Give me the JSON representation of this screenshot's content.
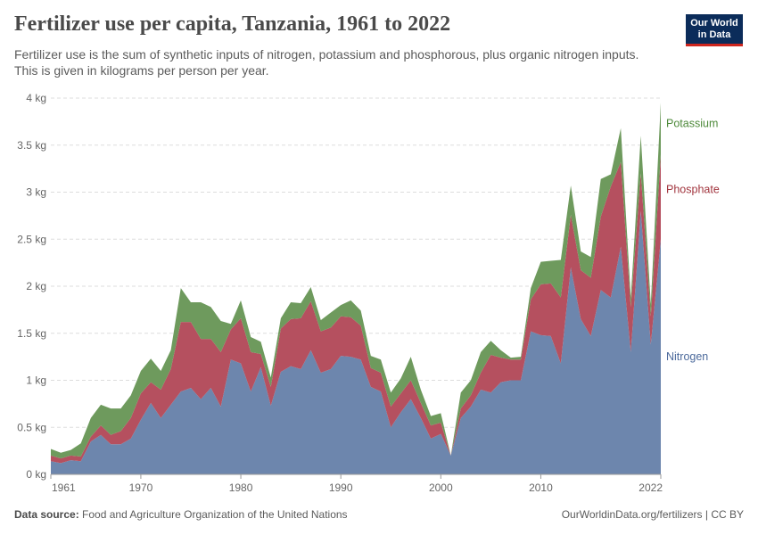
{
  "title": "Fertilizer use per capita, Tanzania, 1961 to 2022",
  "subtitle": "Fertilizer use is the sum of synthetic inputs of nitrogen, potassium and phosphorous, plus organic nitrogen inputs. This is given in kilograms per person per year.",
  "logo": {
    "line1": "Our World",
    "line2": "in Data"
  },
  "footer": {
    "source_label": "Data source:",
    "source_text": "Food and Agriculture Organization of the United Nations",
    "url": "OurWorldinData.org/fertilizers | CC BY"
  },
  "colors": {
    "nitrogen": "#6d86ad",
    "phosphate": "#b5505f",
    "potassium": "#6e9a5d",
    "nitrogen_label": "#4c6a9c",
    "phosphate_label": "#a2363f",
    "potassium_label": "#4e8a3b"
  },
  "chart_data": {
    "type": "area",
    "stacked": true,
    "title": "Fertilizer use per capita, Tanzania, 1961 to 2022",
    "xlabel": "",
    "ylabel": "kilograms per person",
    "xlim": [
      1961,
      2022
    ],
    "ylim": [
      0,
      4
    ],
    "x_ticks": [
      "1961",
      "1970",
      "1980",
      "1990",
      "2000",
      "2010",
      "2022"
    ],
    "y_ticks": [
      "0 kg",
      "0.5 kg",
      "1 kg",
      "1.5 kg",
      "2 kg",
      "2.5 kg",
      "3 kg",
      "3.5 kg",
      "4 kg"
    ],
    "grid": true,
    "x": [
      1961,
      1962,
      1963,
      1964,
      1965,
      1966,
      1967,
      1968,
      1969,
      1970,
      1971,
      1972,
      1973,
      1974,
      1975,
      1976,
      1977,
      1978,
      1979,
      1980,
      1981,
      1982,
      1983,
      1984,
      1985,
      1986,
      1987,
      1988,
      1989,
      1990,
      1991,
      1992,
      1993,
      1994,
      1995,
      1996,
      1997,
      1998,
      1999,
      2000,
      2001,
      2002,
      2003,
      2004,
      2005,
      2006,
      2007,
      2008,
      2009,
      2010,
      2011,
      2012,
      2013,
      2014,
      2015,
      2016,
      2017,
      2018,
      2019,
      2020,
      2021,
      2022
    ],
    "series": [
      {
        "name": "Nitrogen",
        "values": [
          0.14,
          0.12,
          0.15,
          0.14,
          0.35,
          0.42,
          0.32,
          0.32,
          0.38,
          0.58,
          0.76,
          0.6,
          0.74,
          0.88,
          0.92,
          0.8,
          0.92,
          0.72,
          1.22,
          1.18,
          0.88,
          1.14,
          0.73,
          1.09,
          1.15,
          1.12,
          1.32,
          1.08,
          1.12,
          1.26,
          1.25,
          1.22,
          0.93,
          0.88,
          0.5,
          0.66,
          0.8,
          0.6,
          0.38,
          0.43,
          0.2,
          0.6,
          0.72,
          0.9,
          0.87,
          0.98,
          1.0,
          1.0,
          1.52,
          1.48,
          1.47,
          1.18,
          2.2,
          1.65,
          1.47,
          1.96,
          1.88,
          2.42,
          1.3,
          2.8,
          1.38,
          2.5
        ]
      },
      {
        "name": "Phosphate",
        "values": [
          0.06,
          0.05,
          0.05,
          0.05,
          0.05,
          0.1,
          0.1,
          0.14,
          0.22,
          0.28,
          0.22,
          0.3,
          0.38,
          0.74,
          0.7,
          0.64,
          0.52,
          0.58,
          0.32,
          0.48,
          0.42,
          0.14,
          0.2,
          0.46,
          0.5,
          0.54,
          0.52,
          0.44,
          0.44,
          0.42,
          0.42,
          0.36,
          0.2,
          0.2,
          0.22,
          0.2,
          0.2,
          0.16,
          0.14,
          0.12,
          0.0,
          0.1,
          0.12,
          0.18,
          0.4,
          0.26,
          0.22,
          0.22,
          0.34,
          0.54,
          0.56,
          0.7,
          0.56,
          0.52,
          0.62,
          0.78,
          1.18,
          0.9,
          0.48,
          0.4,
          0.3,
          0.9
        ]
      },
      {
        "name": "Potassium",
        "values": [
          0.07,
          0.06,
          0.06,
          0.14,
          0.2,
          0.22,
          0.28,
          0.24,
          0.24,
          0.24,
          0.25,
          0.2,
          0.2,
          0.36,
          0.21,
          0.39,
          0.34,
          0.33,
          0.06,
          0.19,
          0.16,
          0.13,
          0.1,
          0.11,
          0.18,
          0.16,
          0.15,
          0.12,
          0.16,
          0.12,
          0.18,
          0.16,
          0.13,
          0.14,
          0.15,
          0.16,
          0.25,
          0.14,
          0.1,
          0.1,
          0.0,
          0.17,
          0.16,
          0.22,
          0.15,
          0.08,
          0.02,
          0.03,
          0.12,
          0.24,
          0.24,
          0.4,
          0.31,
          0.2,
          0.22,
          0.4,
          0.13,
          0.36,
          0.1,
          0.4,
          0.13,
          0.55
        ]
      }
    ],
    "legend": "right, inline labels"
  }
}
